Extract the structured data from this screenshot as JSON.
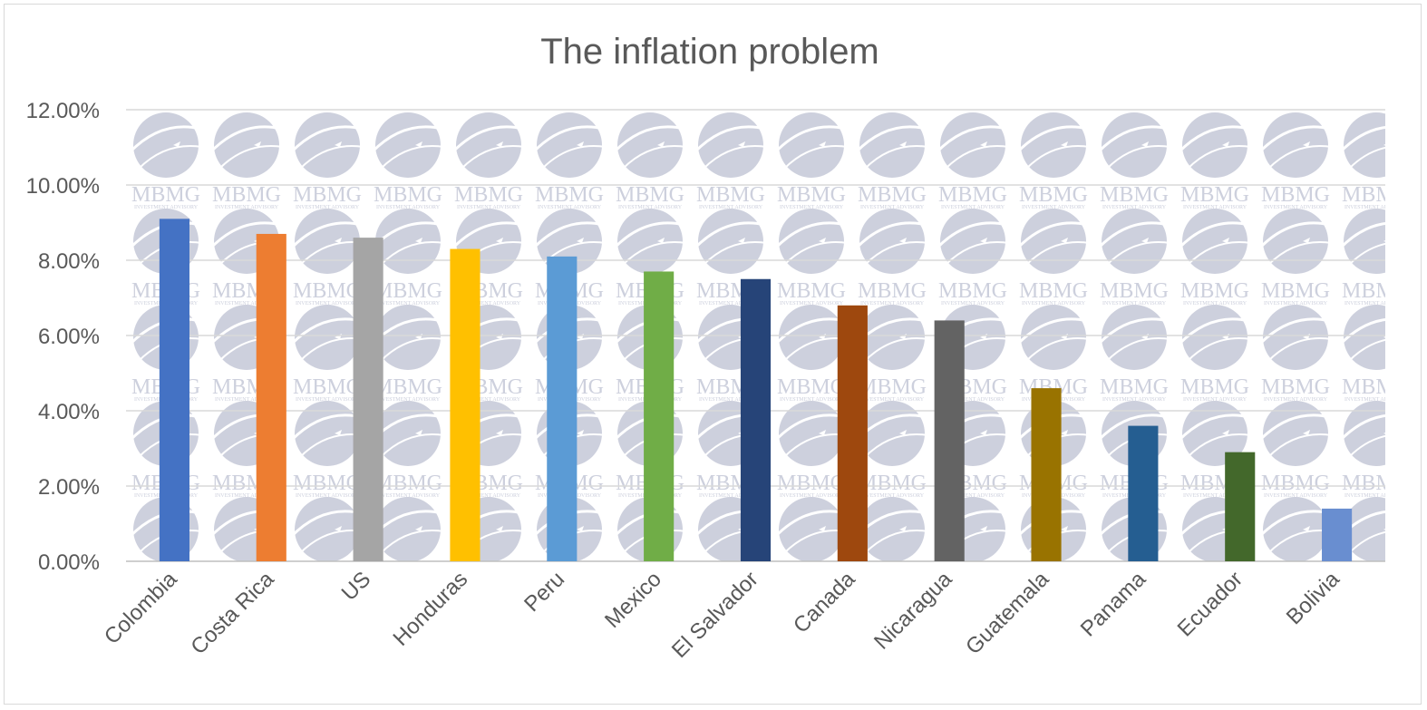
{
  "chart_data": {
    "type": "bar",
    "title": "The inflation problem",
    "categories": [
      "Colombia",
      "Costa Rica",
      "US",
      "Honduras",
      "Peru",
      "Mexico",
      "El Salvador",
      "Canada",
      "Nicaragua",
      "Guatemala",
      "Panama",
      "Ecuador",
      "Bolivia"
    ],
    "values": [
      9.1,
      8.7,
      8.6,
      8.3,
      8.1,
      7.7,
      7.5,
      6.8,
      6.4,
      4.6,
      3.6,
      2.9,
      1.4
    ],
    "bar_colors": [
      "#4472c4",
      "#ed7d31",
      "#a5a5a5",
      "#ffc000",
      "#5b9bd5",
      "#70ad47",
      "#264478",
      "#9e480e",
      "#636363",
      "#997300",
      "#255e91",
      "#43682b",
      "#698ed0"
    ],
    "ylim": [
      0,
      12
    ],
    "yticks": [
      "0.00%",
      "2.00%",
      "4.00%",
      "6.00%",
      "8.00%",
      "10.00%",
      "12.00%"
    ],
    "xlabel": "",
    "ylabel": "",
    "grid": true,
    "legend": "none",
    "watermark": {
      "text": "MBMG",
      "subtext": "INVESTMENT ADVISORY",
      "icon": "globe-arrow-icon",
      "color": "#cdd0dd"
    }
  }
}
